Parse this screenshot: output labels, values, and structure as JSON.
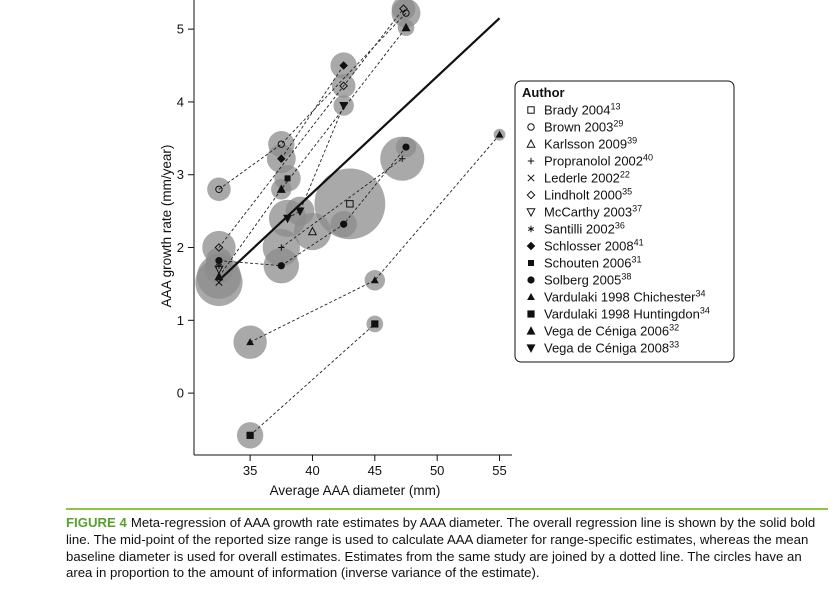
{
  "chart_data": {
    "type": "scatter",
    "xlabel": "Average AAA diameter (mm)",
    "ylabel": "AAA growth rate (mm/year)",
    "xlim": [
      30.5,
      56
    ],
    "ylim": [
      -0.85,
      5.4
    ],
    "x_ticks": [
      35,
      40,
      45,
      50,
      55
    ],
    "y_ticks": [
      0,
      1,
      2,
      3,
      4,
      5
    ],
    "regression_line": {
      "x": [
        32.5,
        55
      ],
      "y": [
        1.55,
        5.15
      ],
      "style": "solid-bold"
    },
    "legend_title": "Author",
    "legend": [
      {
        "label": "Brady 2004",
        "ref": "13",
        "symbol": "square-open"
      },
      {
        "label": "Brown 2003",
        "ref": "29",
        "symbol": "circle-open"
      },
      {
        "label": "Karlsson 2009",
        "ref": "39",
        "symbol": "triangle-open"
      },
      {
        "label": "Propranolol 2002",
        "ref": "40",
        "symbol": "plus"
      },
      {
        "label": "Lederle 2002",
        "ref": "22",
        "symbol": "cross"
      },
      {
        "label": "Lindholt 2000",
        "ref": "35",
        "symbol": "diamond-open"
      },
      {
        "label": "McCarthy 2003",
        "ref": "37",
        "symbol": "triangle-down-open"
      },
      {
        "label": "Santilli 2002",
        "ref": "36",
        "symbol": "asterisk"
      },
      {
        "label": "Schlosser 2008",
        "ref": "41",
        "symbol": "diamond-filled"
      },
      {
        "label": "Schouten 2006",
        "ref": "31",
        "symbol": "square-filled-small"
      },
      {
        "label": "Solberg 2005",
        "ref": "38",
        "symbol": "circle-filled"
      },
      {
        "label": "Vardulaki 1998 Chichester",
        "ref": "34",
        "symbol": "triangle-filled-small"
      },
      {
        "label": "Vardulaki 1998 Huntingdon",
        "ref": "34",
        "symbol": "square-filled"
      },
      {
        "label": "Vega de Céniga 2006",
        "ref": "32",
        "symbol": "triangle-filled"
      },
      {
        "label": "Vega de Céniga 2008",
        "ref": "33",
        "symbol": "triangle-down-filled"
      }
    ],
    "series": [
      {
        "name": "Brady 2004",
        "symbol": "square-open",
        "points": [
          {
            "x": 43,
            "y": 2.6,
            "w": 36
          }
        ]
      },
      {
        "name": "Brown 2003",
        "symbol": "circle-open",
        "points": [
          {
            "x": 32.5,
            "y": 2.8,
            "w": 4
          },
          {
            "x": 37.5,
            "y": 3.42,
            "w": 5
          },
          {
            "x": 47.5,
            "y": 5.22,
            "w": 6
          }
        ]
      },
      {
        "name": "Karlsson 2009",
        "symbol": "triangle-open",
        "points": [
          {
            "x": 40,
            "y": 2.22,
            "w": 10
          }
        ]
      },
      {
        "name": "Propranolol 2002",
        "symbol": "plus",
        "points": [
          {
            "x": 37.5,
            "y": 2.0,
            "w": 10
          },
          {
            "x": 47.2,
            "y": 3.22,
            "w": 14
          }
        ]
      },
      {
        "name": "Lederle 2002",
        "symbol": "cross",
        "points": [
          {
            "x": 32.5,
            "y": 1.52,
            "w": 16
          }
        ]
      },
      {
        "name": "Lindholt 2000",
        "symbol": "diamond-open",
        "points": [
          {
            "x": 32.5,
            "y": 2.0,
            "w": 8
          },
          {
            "x": 42.5,
            "y": 4.22,
            "w": 4
          },
          {
            "x": 47.3,
            "y": 5.28,
            "w": 4
          }
        ]
      },
      {
        "name": "McCarthy 2003",
        "symbol": "triangle-down-open",
        "points": [
          {
            "x": 32.5,
            "y": 1.7,
            "w": 6
          }
        ]
      },
      {
        "name": "Santilli 2002",
        "symbol": "asterisk",
        "points": [
          {
            "x": 32.5,
            "y": 1.75,
            "w": 5
          }
        ]
      },
      {
        "name": "Schlosser 2008",
        "symbol": "diamond-filled",
        "points": [
          {
            "x": 37.5,
            "y": 3.22,
            "w": 6
          },
          {
            "x": 42.5,
            "y": 4.5,
            "w": 5
          }
        ]
      },
      {
        "name": "Schouten 2006",
        "symbol": "square-filled-small",
        "points": [
          {
            "x": 38,
            "y": 2.95,
            "w": 5
          }
        ]
      },
      {
        "name": "Solberg 2005",
        "symbol": "circle-filled",
        "points": [
          {
            "x": 32.5,
            "y": 1.82,
            "w": 5
          },
          {
            "x": 37.5,
            "y": 1.75,
            "w": 9
          },
          {
            "x": 42.5,
            "y": 2.32,
            "w": 5
          },
          {
            "x": 47.5,
            "y": 3.38,
            "w": 3
          }
        ]
      },
      {
        "name": "Vardulaki 1998 Chichester",
        "symbol": "triangle-filled-small",
        "points": [
          {
            "x": 35,
            "y": 0.7,
            "w": 8
          },
          {
            "x": 45,
            "y": 1.55,
            "w": 3
          },
          {
            "x": 55,
            "y": 3.55,
            "w": 1
          }
        ]
      },
      {
        "name": "Vardulaki 1998 Huntingdon",
        "symbol": "square-filled",
        "points": [
          {
            "x": 35,
            "y": -0.58,
            "w": 5
          },
          {
            "x": 45,
            "y": 0.95,
            "w": 2
          }
        ]
      },
      {
        "name": "Vega de Céniga 2006",
        "symbol": "triangle-filled",
        "points": [
          {
            "x": 32.5,
            "y": 1.6,
            "w": 14
          },
          {
            "x": 37.5,
            "y": 2.8,
            "w": 3
          },
          {
            "x": 47.5,
            "y": 5.02,
            "w": 2
          }
        ]
      },
      {
        "name": "Vega de Céniga 2008",
        "symbol": "triangle-down-filled",
        "points": [
          {
            "x": 38,
            "y": 2.4,
            "w": 10
          },
          {
            "x": 39,
            "y": 2.5,
            "w": 6
          },
          {
            "x": 42.5,
            "y": 3.95,
            "w": 3
          }
        ]
      }
    ]
  },
  "caption": {
    "label": "FIGURE 4",
    "text": "Meta-regression of AAA growth rate estimates by AAA diameter. The overall regression line is shown by the solid bold line. The mid-point of the reported size range is used to calculate AAA diameter for range-specific estimates, whereas the mean baseline diameter is used for overall estimates. Estimates from the same study are joined by a dotted line. The circles have an area in proportion to the amount of information (inverse variance of the estimate)."
  }
}
